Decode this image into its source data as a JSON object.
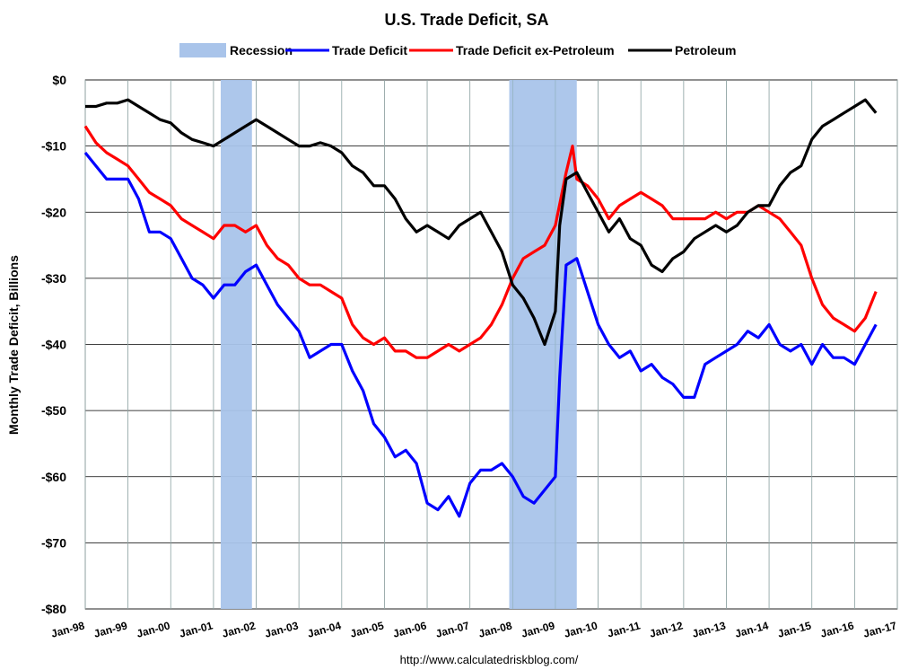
{
  "chart_data": {
    "type": "line",
    "title": "U.S. Trade Deficit, SA",
    "ylabel": "Monthly Trade Deficit, Billions",
    "xlabel": "",
    "footer": "http://www.calculatedriskblog.com/",
    "ylim": [
      -80,
      0
    ],
    "xlim": [
      1998,
      2017
    ],
    "grid": true,
    "legend_position": "top",
    "yticks": [
      0,
      -10,
      -20,
      -30,
      -40,
      -50,
      -60,
      -70,
      -80
    ],
    "ytick_labels": [
      "$0",
      "-$10",
      "-$20",
      "-$30",
      "-$40",
      "-$50",
      "-$60",
      "-$70",
      "-$80"
    ],
    "xtick_labels": [
      "Jan-98",
      "Jan-99",
      "Jan-00",
      "Jan-01",
      "Jan-02",
      "Jan-03",
      "Jan-04",
      "Jan-05",
      "Jan-06",
      "Jan-07",
      "Jan-08",
      "Jan-09",
      "Jan-10",
      "Jan-11",
      "Jan-12",
      "Jan-13",
      "Jan-14",
      "Jan-15",
      "Jan-16",
      "Jan-17"
    ],
    "recessions": {
      "name": "Recession",
      "color": "#a9c4ea",
      "periods": [
        [
          2001.17,
          2001.9
        ],
        [
          2007.92,
          2009.5
        ]
      ]
    },
    "series": [
      {
        "name": "Trade Deficit",
        "color": "#0000ff",
        "x": [
          1998,
          1998.25,
          1998.5,
          1998.75,
          1999,
          1999.25,
          1999.5,
          1999.75,
          2000,
          2000.25,
          2000.5,
          2000.75,
          2001,
          2001.25,
          2001.5,
          2001.75,
          2002,
          2002.25,
          2002.5,
          2002.75,
          2003,
          2003.25,
          2003.5,
          2003.75,
          2004,
          2004.25,
          2004.5,
          2004.75,
          2005,
          2005.25,
          2005.5,
          2005.75,
          2006,
          2006.25,
          2006.5,
          2006.75,
          2007,
          2007.25,
          2007.5,
          2007.75,
          2008,
          2008.25,
          2008.5,
          2008.75,
          2009,
          2009.1,
          2009.25,
          2009.5,
          2009.75,
          2010,
          2010.25,
          2010.5,
          2010.75,
          2011,
          2011.25,
          2011.5,
          2011.75,
          2012,
          2012.25,
          2012.5,
          2012.75,
          2013,
          2013.25,
          2013.5,
          2013.75,
          2014,
          2014.25,
          2014.5,
          2014.75,
          2015,
          2015.25,
          2015.5,
          2015.75,
          2016,
          2016.25,
          2016.5
        ],
        "values": [
          -11,
          -13,
          -15,
          -15,
          -15,
          -18,
          -23,
          -23,
          -24,
          -27,
          -30,
          -31,
          -33,
          -31,
          -31,
          -29,
          -28,
          -31,
          -34,
          -36,
          -38,
          -42,
          -41,
          -40,
          -40,
          -44,
          -47,
          -52,
          -54,
          -57,
          -56,
          -58,
          -64,
          -65,
          -63,
          -66,
          -61,
          -59,
          -59,
          -58,
          -60,
          -63,
          -64,
          -62,
          -60,
          -45,
          -28,
          -27,
          -32,
          -37,
          -40,
          -42,
          -41,
          -44,
          -43,
          -45,
          -46,
          -48,
          -48,
          -43,
          -42,
          -41,
          -40,
          -38,
          -39,
          -37,
          -40,
          -41,
          -40,
          -43,
          -40,
          -42,
          -42,
          -43,
          -40,
          -37
        ]
      },
      {
        "name": "Trade Deficit ex-Petroleum",
        "color": "#ff0000",
        "x": [
          1998,
          1998.25,
          1998.5,
          1998.75,
          1999,
          1999.25,
          1999.5,
          1999.75,
          2000,
          2000.25,
          2000.5,
          2000.75,
          2001,
          2001.25,
          2001.5,
          2001.75,
          2002,
          2002.25,
          2002.5,
          2002.75,
          2003,
          2003.25,
          2003.5,
          2003.75,
          2004,
          2004.25,
          2004.5,
          2004.75,
          2005,
          2005.25,
          2005.5,
          2005.75,
          2006,
          2006.25,
          2006.5,
          2006.75,
          2007,
          2007.25,
          2007.5,
          2007.75,
          2008,
          2008.25,
          2008.5,
          2008.75,
          2009,
          2009.25,
          2009.4,
          2009.5,
          2009.75,
          2010,
          2010.25,
          2010.5,
          2010.75,
          2011,
          2011.25,
          2011.5,
          2011.75,
          2012,
          2012.25,
          2012.5,
          2012.75,
          2013,
          2013.25,
          2013.5,
          2013.75,
          2014,
          2014.25,
          2014.5,
          2014.75,
          2015,
          2015.25,
          2015.5,
          2015.75,
          2016,
          2016.25,
          2016.5
        ],
        "values": [
          -7,
          -9.5,
          -11,
          -12,
          -13,
          -15,
          -17,
          -18,
          -19,
          -21,
          -22,
          -23,
          -24,
          -22,
          -22,
          -23,
          -22,
          -25,
          -27,
          -28,
          -30,
          -31,
          -31,
          -32,
          -33,
          -37,
          -39,
          -40,
          -39,
          -41,
          -41,
          -42,
          -42,
          -41,
          -40,
          -41,
          -40,
          -39,
          -37,
          -34,
          -30,
          -27,
          -26,
          -25,
          -22,
          -14,
          -10,
          -15,
          -16,
          -18,
          -21,
          -19,
          -18,
          -17,
          -18,
          -19,
          -21,
          -21,
          -21,
          -21,
          -20,
          -21,
          -20,
          -20,
          -19,
          -20,
          -21,
          -23,
          -25,
          -30,
          -34,
          -36,
          -37,
          -38,
          -36,
          -32
        ]
      },
      {
        "name": "Petroleum",
        "color": "#000000",
        "x": [
          1998,
          1998.25,
          1998.5,
          1998.75,
          1999,
          1999.25,
          1999.5,
          1999.75,
          2000,
          2000.25,
          2000.5,
          2000.75,
          2001,
          2001.25,
          2001.5,
          2001.75,
          2002,
          2002.25,
          2002.5,
          2002.75,
          2003,
          2003.25,
          2003.5,
          2003.75,
          2004,
          2004.25,
          2004.5,
          2004.75,
          2005,
          2005.25,
          2005.5,
          2005.75,
          2006,
          2006.25,
          2006.5,
          2006.75,
          2007,
          2007.25,
          2007.5,
          2007.75,
          2008,
          2008.25,
          2008.5,
          2008.75,
          2009,
          2009.1,
          2009.25,
          2009.5,
          2009.75,
          2010,
          2010.25,
          2010.5,
          2010.75,
          2011,
          2011.25,
          2011.5,
          2011.75,
          2012,
          2012.25,
          2012.5,
          2012.75,
          2013,
          2013.25,
          2013.5,
          2013.75,
          2014,
          2014.25,
          2014.5,
          2014.75,
          2015,
          2015.25,
          2015.5,
          2015.75,
          2016,
          2016.25,
          2016.5
        ],
        "values": [
          -4,
          -4,
          -3.5,
          -3.5,
          -3,
          -4,
          -5,
          -6,
          -6.5,
          -8,
          -9,
          -9.5,
          -10,
          -9,
          -8,
          -7,
          -6,
          -7,
          -8,
          -9,
          -10,
          -10,
          -9.5,
          -10,
          -11,
          -13,
          -14,
          -16,
          -16,
          -18,
          -21,
          -23,
          -22,
          -23,
          -24,
          -22,
          -21,
          -20,
          -23,
          -26,
          -31,
          -33,
          -36,
          -40,
          -35,
          -22,
          -15,
          -14,
          -17,
          -20,
          -23,
          -21,
          -24,
          -25,
          -28,
          -29,
          -27,
          -26,
          -24,
          -23,
          -22,
          -23,
          -22,
          -20,
          -19,
          -19,
          -16,
          -14,
          -13,
          -9,
          -7,
          -6,
          -5,
          -4,
          -3,
          -5
        ]
      }
    ]
  }
}
